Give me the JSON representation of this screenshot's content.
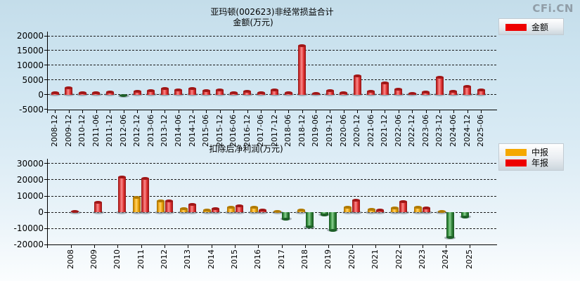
{
  "brand": {
    "logo": "CFi.CN"
  },
  "chart_data": [
    {
      "type": "bar",
      "title": "亚玛顿(002623)非经常损益合计",
      "subtitle": "金额(万元)",
      "xlabel": "",
      "ylabel": "金额(万元)",
      "ylim": [
        -5000,
        20000
      ],
      "yticks": [
        20000,
        15000,
        10000,
        5000,
        0,
        -5000
      ],
      "grid": "horizontal-dashed",
      "legend_position": "top-right",
      "negative_color": "#2f9440",
      "negative_color_key": "green",
      "categories": [
        "2008-12",
        "2009-12",
        "2010-12",
        "2011-06",
        "2011-12",
        "2012-06",
        "2012-12",
        "2013-06",
        "2013-12",
        "2014-06",
        "2014-12",
        "2015-06",
        "2015-12",
        "2016-06",
        "2016-12",
        "2017-06",
        "2017-12",
        "2018-06",
        "2018-12",
        "2019-06",
        "2019-12",
        "2020-06",
        "2020-12",
        "2021-06",
        "2021-12",
        "2022-06",
        "2022-12",
        "2023-06",
        "2023-12",
        "2024-06",
        "2024-12",
        "2025-06"
      ],
      "series": [
        {
          "name": "金额",
          "color": "#ee0000",
          "color_key": "red",
          "values": [
            700,
            2200,
            700,
            700,
            800,
            -450,
            1000,
            1400,
            2000,
            1500,
            2000,
            1400,
            1600,
            550,
            1200,
            550,
            1600,
            600,
            16600,
            350,
            1300,
            600,
            6300,
            1200,
            3950,
            1900,
            80,
            800,
            5800,
            1050,
            2800,
            1500
          ]
        }
      ]
    },
    {
      "type": "bar",
      "title": "扣除后净利润(万元)",
      "xlabel": "",
      "ylabel": "扣除后净利润(万元)",
      "ylim": [
        -20000,
        30000
      ],
      "yticks": [
        30000,
        20000,
        10000,
        0,
        -10000,
        -20000
      ],
      "grid": "horizontal-dashed",
      "legend_position": "top-right",
      "negative_color": "#2f9440",
      "negative_color_key": "green",
      "categories": [
        "2008",
        "2009",
        "2010",
        "2011",
        "2012",
        "2013",
        "2014",
        "2015",
        "2016",
        "2017",
        "2018",
        "2019",
        "2020",
        "2021",
        "2022",
        "2023",
        "2024",
        "2025"
      ],
      "series": [
        {
          "name": "中报",
          "color": "#f5a800",
          "color_key": "orange",
          "values": [
            null,
            null,
            null,
            9300,
            6800,
            2000,
            1400,
            3200,
            3000,
            500,
            1200,
            -1500,
            3000,
            1600,
            2500,
            3200,
            400,
            -2800
          ]
        },
        {
          "name": "年报",
          "color": "#ee0000",
          "color_key": "red",
          "values": [
            300,
            6000,
            21500,
            20800,
            7000,
            5000,
            2300,
            3900,
            1200,
            -4200,
            -9200,
            -11200,
            7300,
            1300,
            6600,
            2600,
            -15600,
            null
          ]
        }
      ]
    }
  ]
}
